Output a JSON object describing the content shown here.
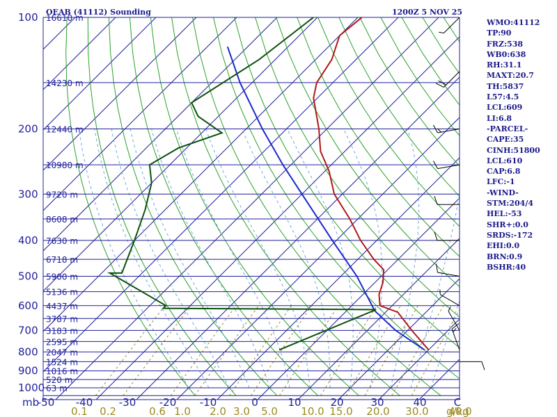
{
  "header": {
    "station": "OEAB (41112) Sounding",
    "valid": "1200Z  5 NOV 25"
  },
  "stats": [
    "WMO:41112",
    "TP:90",
    "FRZ:538",
    "WB0:638",
    "RH:31.1",
    "MAXT:20.7",
    "TH:5837",
    "L57:4.5",
    "LCL:609",
    "LI:6.8",
    "-PARCEL-",
    "CAPE:35",
    "CINH:51800",
    "LCL:610",
    "CAP:6.8",
    "LFC:-1",
    "-WIND-",
    "STM:204/4",
    "HEL:-53",
    "SHR+:0.0",
    "SRDS:-172",
    "EHI:0.0",
    "BRN:0.9",
    "BSHR:40"
  ],
  "colors": {
    "isobar": "#1f1f9a",
    "isotherm": "#1f1f9a",
    "dry_adiabat": "#2aa02a",
    "moist_adiabat": "#6fa8dc",
    "mixing_ratio": "#9b8a1f",
    "temperature": "#b01818",
    "dewpoint": "#0b4f0b",
    "parcel": "#1a28c8",
    "wind_barb": "#000000"
  },
  "chart_data": {
    "type": "skew-t",
    "pressure_unit_label": "mb",
    "mixing_ratio_unit_label": "g/kg",
    "pressure_ticks": [
      100,
      200,
      300,
      400,
      500,
      600,
      700,
      800,
      900,
      1000
    ],
    "temperature_ticks": [
      "-50",
      "-40",
      "-30",
      "-20",
      "-10",
      "0",
      "10",
      "20",
      "30",
      "40",
      "C"
    ],
    "mixing_ratio_ticks": [
      "0.1",
      "0.2",
      "0.6",
      "1.0",
      "2.0",
      "3.0",
      "5.0",
      "10.0",
      "15.0",
      "20.0",
      "30.0",
      "40.0"
    ],
    "height_labels": [
      {
        "p": 100,
        "label": "16610 m"
      },
      {
        "p": 150,
        "label": "14230 m"
      },
      {
        "p": 200,
        "label": "12440 m"
      },
      {
        "p": 250,
        "label": "10980 m"
      },
      {
        "p": 300,
        "label": "9720 m"
      },
      {
        "p": 350,
        "label": "8608 m"
      },
      {
        "p": 400,
        "label": "7630 m"
      },
      {
        "p": 450,
        "label": "6718 m"
      },
      {
        "p": 500,
        "label": "5900 m"
      },
      {
        "p": 550,
        "label": "5136 m"
      },
      {
        "p": 600,
        "label": "4437 m"
      },
      {
        "p": 650,
        "label": "3787 m"
      },
      {
        "p": 700,
        "label": "3183 m"
      },
      {
        "p": 750,
        "label": "2595 m"
      },
      {
        "p": 800,
        "label": "2047 m"
      },
      {
        "p": 850,
        "label": "1524 m"
      },
      {
        "p": 900,
        "label": "1016 m"
      },
      {
        "p": 950,
        "label": "520 m"
      },
      {
        "p": 1000,
        "label": "63 m"
      }
    ],
    "temperature": [
      {
        "p": 100,
        "t": -69
      },
      {
        "p": 112,
        "t": -70
      },
      {
        "p": 130,
        "t": -66
      },
      {
        "p": 150,
        "t": -64
      },
      {
        "p": 165,
        "t": -61
      },
      {
        "p": 200,
        "t": -52
      },
      {
        "p": 230,
        "t": -46
      },
      {
        "p": 260,
        "t": -39
      },
      {
        "p": 300,
        "t": -32
      },
      {
        "p": 350,
        "t": -22
      },
      {
        "p": 400,
        "t": -14
      },
      {
        "p": 450,
        "t": -6
      },
      {
        "p": 480,
        "t": -1
      },
      {
        "p": 520,
        "t": 2
      },
      {
        "p": 560,
        "t": 4
      },
      {
        "p": 600,
        "t": 7
      },
      {
        "p": 625,
        "t": 13
      },
      {
        "p": 700,
        "t": 21
      },
      {
        "p": 790,
        "t": 30
      }
    ],
    "dewpoint": [
      {
        "p": 100,
        "t": -81
      },
      {
        "p": 130,
        "t": -84
      },
      {
        "p": 170,
        "t": -90
      },
      {
        "p": 185,
        "t": -85
      },
      {
        "p": 205,
        "t": -75
      },
      {
        "p": 225,
        "t": -82
      },
      {
        "p": 250,
        "t": -85
      },
      {
        "p": 280,
        "t": -80
      },
      {
        "p": 330,
        "t": -75
      },
      {
        "p": 400,
        "t": -70
      },
      {
        "p": 490,
        "t": -65
      },
      {
        "p": 490,
        "t": -68
      },
      {
        "p": 600,
        "t": -46
      },
      {
        "p": 610,
        "t": -46
      },
      {
        "p": 615,
        "t": 7
      },
      {
        "p": 790,
        "t": -7
      }
    ],
    "parcel": [
      {
        "p": 120,
        "t": -95
      },
      {
        "p": 150,
        "t": -83
      },
      {
        "p": 200,
        "t": -66
      },
      {
        "p": 250,
        "t": -52
      },
      {
        "p": 300,
        "t": -40
      },
      {
        "p": 400,
        "t": -21
      },
      {
        "p": 500,
        "t": -6
      },
      {
        "p": 620,
        "t": 7
      },
      {
        "p": 700,
        "t": 17
      },
      {
        "p": 790,
        "t": 29
      }
    ],
    "wind_barbs": [
      {
        "p": 100,
        "dir": 225,
        "spd": 5
      },
      {
        "p": 140,
        "dir": 225,
        "spd": 20
      },
      {
        "p": 200,
        "dir": 260,
        "spd": 15
      },
      {
        "p": 250,
        "dir": 260,
        "spd": 10
      },
      {
        "p": 320,
        "dir": 270,
        "spd": 10
      },
      {
        "p": 400,
        "dir": 270,
        "spd": 10
      },
      {
        "p": 500,
        "dir": 280,
        "spd": 10
      },
      {
        "p": 600,
        "dir": 300,
        "spd": 5
      },
      {
        "p": 700,
        "dir": 330,
        "spd": 5
      },
      {
        "p": 790,
        "dir": 340,
        "spd": 15
      },
      {
        "p": 850,
        "dir": 90,
        "spd": 10
      }
    ]
  }
}
